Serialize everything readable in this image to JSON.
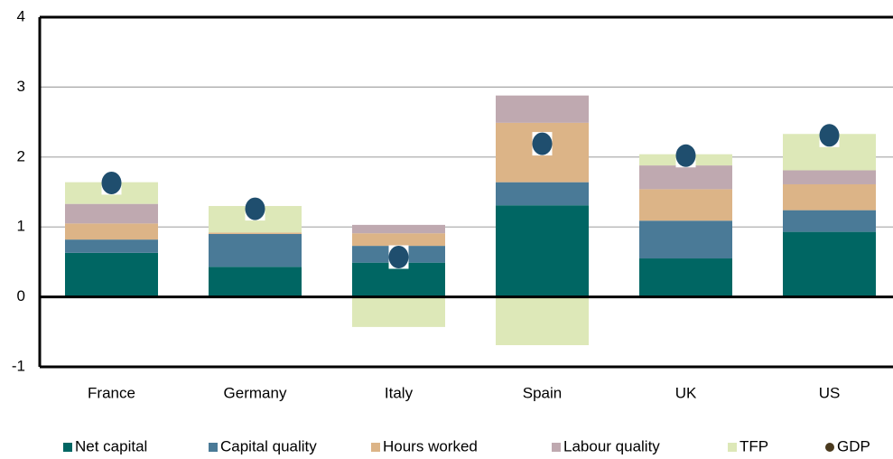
{
  "chart_data": {
    "type": "bar",
    "stacked": true,
    "categories": [
      "France",
      "Germany",
      "Italy",
      "Spain",
      "UK",
      "US"
    ],
    "series": [
      {
        "name": "Net capital",
        "color": "#006663",
        "values": [
          0.63,
          0.43,
          0.49,
          1.31,
          0.55,
          0.93
        ]
      },
      {
        "name": "Capital quality",
        "color": "#4a7a97",
        "values": [
          0.19,
          0.47,
          0.24,
          0.33,
          0.54,
          0.31
        ]
      },
      {
        "name": "Hours worked",
        "color": "#dcb487",
        "values": [
          0.23,
          0.02,
          0.18,
          0.85,
          0.45,
          0.37
        ]
      },
      {
        "name": "Labour quality",
        "color": "#bfa9b0",
        "values": [
          0.28,
          0.0,
          0.12,
          0.39,
          0.34,
          0.2
        ]
      },
      {
        "name": "TFP",
        "color": "#dde8b8",
        "values": [
          0.31,
          0.38,
          -0.43,
          -0.69,
          0.16,
          0.52
        ]
      },
      {
        "name": "GDP",
        "color": "#1f4e6e",
        "type": "scatter",
        "values": [
          1.63,
          1.26,
          0.57,
          2.19,
          2.02,
          2.31
        ]
      }
    ],
    "ylim": [
      -1,
      4
    ],
    "yticks": [
      -1,
      0,
      1,
      2,
      3,
      4
    ],
    "grid": true,
    "legend": "bottom"
  }
}
